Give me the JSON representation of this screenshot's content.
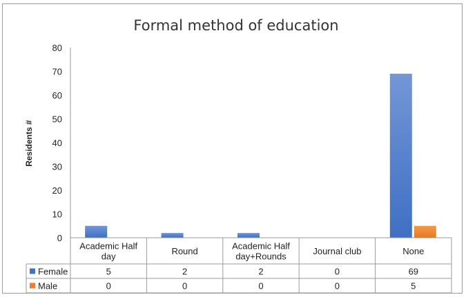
{
  "chart_data": {
    "type": "bar",
    "title": "Formal method of education",
    "ylabel": "Residents #",
    "xlabel": "",
    "ylim": [
      0,
      80
    ],
    "yticks": [
      0,
      10,
      20,
      30,
      40,
      50,
      60,
      70,
      80
    ],
    "grid": false,
    "legend": "data-table",
    "categories": [
      [
        "Academic Half",
        "day"
      ],
      [
        "Round"
      ],
      [
        "Academic Half",
        "day+Rounds"
      ],
      [
        "Journal club"
      ],
      [
        "None"
      ]
    ],
    "series": [
      {
        "name": "Female",
        "values": [
          5,
          2,
          2,
          0,
          69
        ],
        "color": "#4472c4"
      },
      {
        "name": "Male",
        "values": [
          0,
          0,
          0,
          0,
          5
        ],
        "color": "#ed7d31"
      }
    ]
  }
}
